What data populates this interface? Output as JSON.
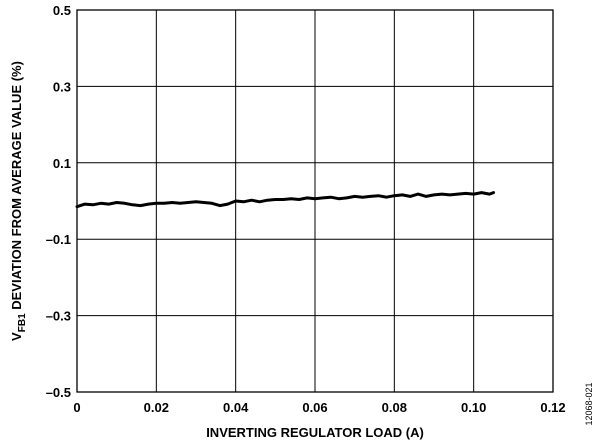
{
  "chart_data": {
    "type": "line",
    "title": "",
    "xlabel": "INVERTING REGULATOR LOAD (A)",
    "ylabel": {
      "prefix": "V",
      "subscript": "FB1",
      "rest": " DEVIATION FROM AVERAGE VALUE (%)"
    },
    "xlim": [
      0,
      0.12
    ],
    "ylim": [
      -0.5,
      0.5
    ],
    "x_ticks": [
      0,
      0.02,
      0.04,
      0.06,
      0.08,
      0.1,
      0.12
    ],
    "x_tick_labels": [
      "0",
      "0.02",
      "0.04",
      "0.06",
      "0.08",
      "0.10",
      "0.12"
    ],
    "y_ticks": [
      0.5,
      0.3,
      0.1,
      -0.1,
      -0.3,
      -0.5
    ],
    "y_tick_labels": [
      "0.5",
      "0.3",
      "0.1",
      "–0.1",
      "–0.3",
      "–0.5"
    ],
    "grid": true,
    "series": [
      {
        "color": "#000000",
        "x": [
          0,
          0.002,
          0.004,
          0.006,
          0.008,
          0.01,
          0.012,
          0.014,
          0.016,
          0.018,
          0.02,
          0.022,
          0.024,
          0.026,
          0.028,
          0.03,
          0.032,
          0.034,
          0.036,
          0.038,
          0.04,
          0.042,
          0.044,
          0.046,
          0.048,
          0.05,
          0.052,
          0.054,
          0.056,
          0.058,
          0.06,
          0.062,
          0.064,
          0.066,
          0.068,
          0.07,
          0.072,
          0.074,
          0.076,
          0.078,
          0.08,
          0.082,
          0.084,
          0.086,
          0.088,
          0.09,
          0.092,
          0.094,
          0.096,
          0.098,
          0.1,
          0.102,
          0.104,
          0.105
        ],
        "y": [
          -0.015,
          -0.008,
          -0.01,
          -0.006,
          -0.008,
          -0.004,
          -0.006,
          -0.01,
          -0.012,
          -0.008,
          -0.006,
          -0.006,
          -0.004,
          -0.006,
          -0.004,
          -0.002,
          -0.004,
          -0.006,
          -0.012,
          -0.008,
          0.0,
          -0.002,
          0.002,
          -0.002,
          0.002,
          0.004,
          0.004,
          0.006,
          0.004,
          0.008,
          0.006,
          0.008,
          0.01,
          0.006,
          0.008,
          0.012,
          0.01,
          0.012,
          0.014,
          0.01,
          0.014,
          0.016,
          0.012,
          0.018,
          0.012,
          0.016,
          0.018,
          0.016,
          0.018,
          0.02,
          0.018,
          0.022,
          0.018,
          0.022
        ]
      }
    ]
  },
  "figure_id": "12068-021"
}
